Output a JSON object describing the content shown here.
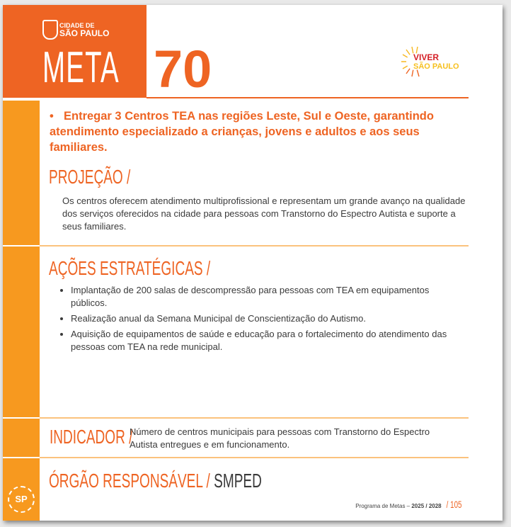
{
  "header": {
    "city_logo_line1": "CIDADE DE",
    "city_logo_line2": "SÃO PAULO",
    "meta_label": "META",
    "meta_number": "70",
    "program_logo_line1": "VIVER",
    "program_logo_line2": "SÃO PAULO"
  },
  "goal": {
    "bold": "Entregar 3 Centros TEA nas regiões Leste, Sul e Oeste,",
    "rest": " garantindo atendimento especializado a crianças, jovens e adultos e aos seus familiares."
  },
  "projection": {
    "title": "PROJEÇÃO /",
    "text": "Os centros oferecem atendimento multiprofissional e representam um grande avanço na qualidade dos serviços oferecidos na cidade para pessoas com Transtorno do Espectro Autista e suporte a seus familiares."
  },
  "actions": {
    "title": "AÇÕES ESTRATÉGICAS /",
    "items": [
      "Implantação de 200 salas de descompressão para pessoas com TEA em equipamentos públicos.",
      "Realização anual da Semana Municipal de Conscientização do Autismo.",
      "Aquisição de equipamentos de saúde e educação para o fortalecimento do atendimento das pessoas com TEA na rede municipal."
    ]
  },
  "indicator": {
    "title": "INDICADOR /",
    "text": "Número de centros municipais para pessoas com Transtorno do Espectro Autista entregues e em funcionamento."
  },
  "responsible": {
    "title": "ÓRGÃO RESPONSÁVEL /",
    "value": "SMPED"
  },
  "footer": {
    "program": "Programa de Metas –",
    "years": "2025 / 2028",
    "page": "/ 105",
    "sp_logo": "SP"
  },
  "colors": {
    "orange": "#ee6423",
    "amber": "#f7991f",
    "rule": "#fbc27d"
  }
}
